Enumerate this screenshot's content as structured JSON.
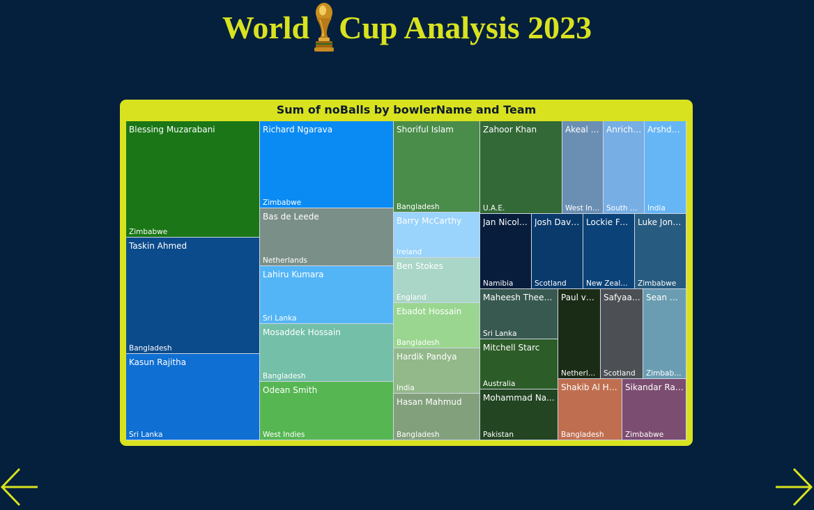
{
  "page": {
    "title_part1": "World",
    "title_part2": "Cup Analysis 2023",
    "accent_color": "#d9e21f",
    "background_color": "#04203d",
    "trophy_icon": "trophy-icon",
    "prev_icon": "arrow-left-icon",
    "next_icon": "arrow-right-icon"
  },
  "chart_data": {
    "type": "treemap",
    "title": "Sum of noBalls by bowlerName and Team",
    "value_field": "noBalls",
    "columns": [
      {
        "tiles": [
          {
            "name": "Blessing Muzarabani",
            "team": "Zimbabwe",
            "label": "Blessing Muzarabani",
            "value": 8,
            "color": "#1a7616"
          },
          {
            "name": "Taskin Ahmed",
            "team": "Bangladesh",
            "label": "Taskin Ahmed",
            "value": 8,
            "color": "#0c4b8b"
          },
          {
            "name": "Kasun Rajitha",
            "team": "Sri Lanka",
            "label": "Kasun Rajitha",
            "value": 6,
            "color": "#0f6fd2"
          }
        ]
      },
      {
        "tiles": [
          {
            "name": "Richard Ngarava",
            "team": "Zimbabwe",
            "label": "Richard Ngarava",
            "value": 6,
            "color": "#0a8bf3"
          },
          {
            "name": "Bas de Leede",
            "team": "Netherlands",
            "label": "Bas de Leede",
            "value": 4,
            "color": "#7b8f89"
          },
          {
            "name": "Lahiru Kumara",
            "team": "Sri Lanka",
            "label": "Lahiru Kumara",
            "value": 4,
            "color": "#54b5f6"
          },
          {
            "name": "Mosaddek Hossain",
            "team": "Bangladesh",
            "label": "Mosaddek Hossain",
            "value": 4,
            "color": "#73bfa8"
          },
          {
            "name": "Odean Smith",
            "team": "West Indies",
            "label": "Odean Smith",
            "value": 4,
            "color": "#56b652"
          }
        ]
      },
      {
        "tiles": [
          {
            "name": "Shoriful Islam",
            "team": "Bangladesh",
            "label": "Shoriful Islam",
            "value": 4,
            "color": "#4a8c4a"
          },
          {
            "name": "Barry McCarthy",
            "team": "Ireland",
            "label": "Barry McCarthy",
            "value": 2,
            "color": "#9ad3fb"
          },
          {
            "name": "Ben Stokes",
            "team": "England",
            "label": "Ben Stokes",
            "value": 2,
            "color": "#a9d6c7"
          },
          {
            "name": "Ebadot Hossain",
            "team": "Bangladesh",
            "label": "Ebadot Hossain",
            "value": 2,
            "color": "#9ad690"
          },
          {
            "name": "Hardik Pandya",
            "team": "India",
            "label": "Hardik Pandya",
            "value": 2,
            "color": "#93b88a"
          },
          {
            "name": "Hasan Mahmud",
            "team": "Bangladesh",
            "label": "Hasan Mahmud",
            "value": 2,
            "color": "#83a07c"
          }
        ]
      },
      {
        "groups": [
          {
            "tiles": [
              {
                "name": "Zahoor Khan",
                "team": "U.A.E.",
                "label": "Zahoor Khan",
                "value": 4,
                "color": "#336936"
              },
              {
                "name": "Akeal Hosein",
                "team": "West Indies",
                "label": "Akeal H...",
                "team_label": "West In...",
                "value": 2,
                "color": "#6b8fb3"
              },
              {
                "name": "Anrich Nortje",
                "team": "South Africa",
                "label": "Anrich ...",
                "team_label": "South Af...",
                "value": 2,
                "color": "#77aee4"
              },
              {
                "name": "Arshdeep Singh",
                "team": "India",
                "label": "Arshde...",
                "value": 2,
                "color": "#66b6f5"
              }
            ]
          },
          {
            "tiles": [
              {
                "name": "Jan Nicol Loftie-Eaton",
                "team": "Namibia",
                "label": "Jan Nicol ...",
                "value": 2,
                "color": "#071d3b"
              },
              {
                "name": "Josh Davey",
                "team": "Scotland",
                "label": "Josh Davey",
                "value": 2,
                "color": "#0a3a6b"
              },
              {
                "name": "Lockie Ferguson",
                "team": "New Zealand",
                "label": "Lockie Fer...",
                "value": 2,
                "color": "#0b4277"
              },
              {
                "name": "Luke Jongwe",
                "team": "Zimbabwe",
                "label": "Luke Jong...",
                "value": 2,
                "color": "#285b80"
              }
            ]
          },
          {
            "tiles": [
              {
                "name": "Maheesh Theekshana",
                "team": "Sri Lanka",
                "label": "Maheesh Theeks...",
                "value": 2,
                "color": "#38594f"
              },
              {
                "name": "Mitchell Starc",
                "team": "Australia",
                "label": "Mitchell Starc",
                "value": 2,
                "color": "#2c5c27"
              },
              {
                "name": "Mohammad Nawaz",
                "team": "Pakistan",
                "label": "Mohammad Na...",
                "value": 2,
                "color": "#234522"
              },
              {
                "name": "Paul van Meekeren",
                "team": "Netherlands",
                "label": "Paul va...",
                "team_label": "Netherla...",
                "value": 2,
                "color": "#1a2b16"
              },
              {
                "name": "Safyaan Sharif",
                "team": "Scotland",
                "label": "Safyaan...",
                "value": 2,
                "color": "#4c4f53"
              },
              {
                "name": "Sean Williams",
                "team": "Zimbabwe",
                "label": "Sean W...",
                "value": 2,
                "color": "#6a9db1"
              },
              {
                "name": "Shakib Al Hasan",
                "team": "Bangladesh",
                "label": "Shakib Al Has...",
                "value": 2,
                "color": "#bf6f50"
              },
              {
                "name": "Sikandar Raza",
                "team": "Zimbabwe",
                "label": "Sikandar Raza",
                "value": 2,
                "color": "#7b4d70"
              }
            ]
          }
        ]
      }
    ]
  }
}
